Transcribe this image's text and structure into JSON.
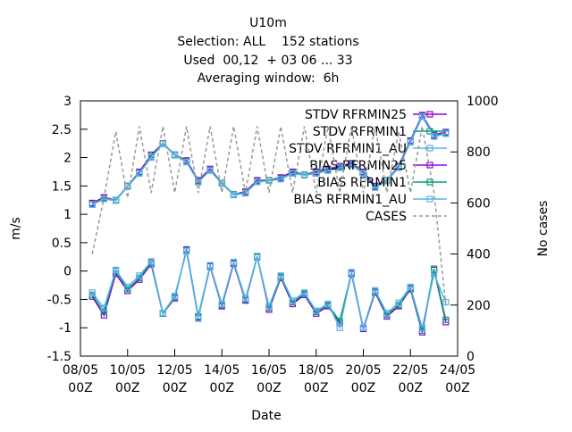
{
  "chart_data": {
    "type": "line",
    "title": [
      "U10m",
      "Selection: ALL    152 stations",
      "Used  00,12  + 03 06 ... 33",
      "Averaging window:  6h"
    ],
    "xlabel": "Date",
    "ylabel": "m/s",
    "y2label": "No cases",
    "xlim": [
      "08/05 00Z",
      "24/05 00Z"
    ],
    "xticks": [
      "08/05 00Z",
      "10/05 00Z",
      "12/05 00Z",
      "14/05 00Z",
      "16/05 00Z",
      "18/05 00Z",
      "20/05 00Z",
      "22/05 00Z",
      "24/05 00Z"
    ],
    "ylim": [
      -1.5,
      3
    ],
    "yticks": [
      -1.5,
      -1,
      -0.5,
      0,
      0.5,
      1,
      1.5,
      2,
      2.5,
      3
    ],
    "y2lim": [
      0,
      1000
    ],
    "y2ticks": [
      0,
      200,
      400,
      600,
      800,
      1000
    ],
    "x": [
      "08/05 12Z",
      "09/05 00Z",
      "09/05 12Z",
      "10/05 00Z",
      "10/05 12Z",
      "11/05 00Z",
      "11/05 12Z",
      "12/05 00Z",
      "12/05 12Z",
      "13/05 00Z",
      "13/05 12Z",
      "14/05 00Z",
      "14/05 12Z",
      "15/05 00Z",
      "15/05 12Z",
      "16/05 00Z",
      "16/05 12Z",
      "17/05 00Z",
      "17/05 12Z",
      "18/05 00Z",
      "18/05 12Z",
      "19/05 00Z",
      "19/05 12Z",
      "20/05 00Z",
      "20/05 12Z",
      "21/05 00Z",
      "21/05 12Z",
      "22/05 00Z",
      "22/05 12Z",
      "23/05 00Z",
      "23/05 12Z"
    ],
    "series": [
      {
        "name": "STDV RFRMIN25",
        "color": "#9400d3",
        "values": [
          1.2,
          1.3,
          1.25,
          1.5,
          1.75,
          2.05,
          2.25,
          2.05,
          1.95,
          1.6,
          1.8,
          1.55,
          1.35,
          1.4,
          1.6,
          1.6,
          1.65,
          1.75,
          1.7,
          1.75,
          1.8,
          1.85,
          1.9,
          1.75,
          1.5,
          1.6,
          1.85,
          2.3,
          2.75,
          2.4,
          2.45
        ]
      },
      {
        "name": "STDV RFRMIN1",
        "color": "#009e73",
        "values": [
          1.18,
          1.28,
          1.25,
          1.5,
          1.73,
          2.02,
          2.25,
          2.05,
          1.93,
          1.58,
          1.78,
          1.55,
          1.35,
          1.38,
          1.58,
          1.6,
          1.63,
          1.73,
          1.7,
          1.73,
          1.78,
          1.83,
          1.88,
          1.73,
          1.48,
          1.6,
          1.83,
          2.28,
          2.73,
          2.38,
          2.43
        ]
      },
      {
        "name": "STDV RFRMIN1_AU",
        "color": "#56b4e9",
        "values": [
          1.17,
          1.27,
          1.24,
          1.49,
          1.72,
          2.0,
          2.24,
          2.04,
          1.92,
          1.57,
          1.77,
          1.54,
          1.34,
          1.37,
          1.57,
          1.59,
          1.62,
          1.72,
          1.69,
          1.72,
          1.77,
          1.82,
          1.87,
          1.72,
          1.47,
          1.59,
          1.82,
          2.27,
          2.72,
          2.37,
          2.42
        ]
      },
      {
        "name": "BIAS RFRMIN25",
        "color": "#9400d3",
        "values": [
          -0.45,
          -0.78,
          -0.05,
          -0.35,
          -0.15,
          0.12,
          -0.75,
          -0.48,
          0.38,
          -0.82,
          0.08,
          -0.62,
          0.13,
          -0.52,
          0.25,
          -0.68,
          -0.12,
          -0.58,
          -0.42,
          -0.75,
          -0.62,
          -0.92,
          -0.05,
          -1.02,
          -0.38,
          -0.8,
          -0.62,
          -0.32,
          -1.08,
          0.02,
          -0.9
        ]
      },
      {
        "name": "BIAS RFRMIN1",
        "color": "#009e73",
        "values": [
          -0.42,
          -0.72,
          0.0,
          -0.32,
          -0.12,
          0.15,
          -0.75,
          -0.46,
          0.36,
          -0.8,
          0.1,
          -0.6,
          0.15,
          -0.5,
          0.26,
          -0.65,
          -0.1,
          -0.55,
          -0.4,
          -0.72,
          -0.6,
          -0.88,
          -0.03,
          -1.0,
          -0.36,
          -0.77,
          -0.6,
          -0.3,
          -1.05,
          0.04,
          -0.86
        ]
      },
      {
        "name": "BIAS RFRMIN1_AU",
        "color": "#56b4e9",
        "values": [
          -0.38,
          -0.65,
          0.02,
          -0.28,
          -0.08,
          0.17,
          -0.74,
          -0.44,
          0.35,
          -0.84,
          0.1,
          -0.58,
          0.16,
          -0.48,
          0.24,
          -0.62,
          -0.08,
          -0.52,
          -0.38,
          -0.7,
          -0.58,
          -1.0,
          -0.02,
          -1.0,
          -0.34,
          -0.74,
          -0.56,
          -0.28,
          -1.0,
          -0.05,
          -0.55
        ]
      },
      {
        "name": "CASES",
        "color": "#999999",
        "axis": "y2",
        "values": [
          400,
          620,
          880,
          620,
          900,
          640,
          900,
          640,
          900,
          640,
          900,
          640,
          900,
          640,
          900,
          640,
          900,
          640,
          900,
          640,
          900,
          640,
          900,
          640,
          900,
          640,
          880,
          640,
          900,
          640,
          200
        ]
      }
    ]
  }
}
